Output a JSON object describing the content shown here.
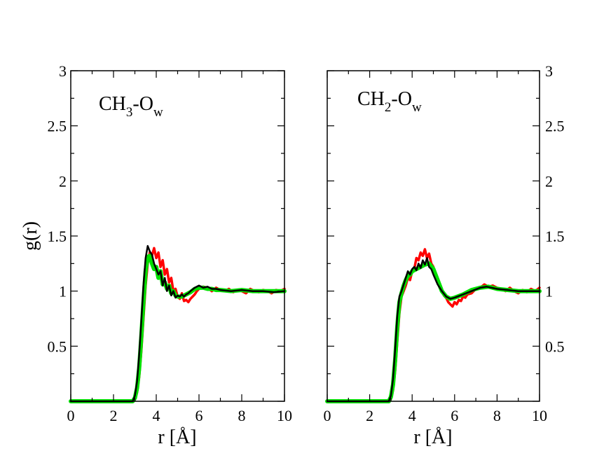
{
  "chart_data": [
    {
      "type": "line",
      "panel": "left",
      "title_main": "CH",
      "title_sub1": "3",
      "title_mid": "-O",
      "title_sub2": "w",
      "xlabel": "r [Å]",
      "ylabel": "g(r)",
      "xlim": [
        0,
        10
      ],
      "ylim": [
        0,
        3
      ],
      "xticks": [
        "0",
        "2",
        "4",
        "6",
        "8",
        "10"
      ],
      "yticks": [
        "0.5",
        "1",
        "1.5",
        "2",
        "2.5",
        "3"
      ],
      "series": [
        {
          "name": "red",
          "color": "#ff0000",
          "x": [
            0,
            2.9,
            3.0,
            3.1,
            3.2,
            3.3,
            3.4,
            3.5,
            3.6,
            3.7,
            3.8,
            3.9,
            4.0,
            4.1,
            4.2,
            4.3,
            4.4,
            4.5,
            4.6,
            4.7,
            4.8,
            4.9,
            5.0,
            5.1,
            5.2,
            5.3,
            5.4,
            5.5,
            5.6,
            5.7,
            5.8,
            5.9,
            6.0,
            6.2,
            6.4,
            6.6,
            6.8,
            7.0,
            7.2,
            7.4,
            7.6,
            7.8,
            8.0,
            8.2,
            8.4,
            8.6,
            8.8,
            9.0,
            9.2,
            9.4,
            9.6,
            9.8,
            10.0
          ],
          "y": [
            0,
            0,
            0.02,
            0.08,
            0.22,
            0.45,
            0.75,
            1.05,
            1.25,
            1.35,
            1.32,
            1.39,
            1.3,
            1.35,
            1.22,
            1.28,
            1.15,
            1.2,
            1.08,
            1.12,
            1.0,
            1.02,
            0.95,
            0.93,
            0.98,
            0.91,
            0.92,
            0.9,
            0.93,
            0.95,
            0.97,
            1.0,
            1.02,
            1.04,
            1.03,
            1.0,
            1.03,
            1.01,
            1.0,
            1.02,
            0.99,
            1.01,
            1.0,
            0.98,
            1.02,
            1.0,
            0.99,
            1.01,
            1.0,
            0.98,
            1.01,
            1.0,
            1.02
          ]
        },
        {
          "name": "green",
          "color": "#00e000",
          "x": [
            0,
            2.9,
            3.0,
            3.1,
            3.2,
            3.3,
            3.4,
            3.5,
            3.6,
            3.7,
            3.8,
            3.9,
            4.0,
            4.1,
            4.2,
            4.3,
            4.4,
            4.5,
            4.6,
            4.7,
            4.8,
            4.9,
            5.0,
            5.2,
            5.4,
            5.6,
            5.8,
            6.0,
            6.2,
            6.4,
            6.6,
            6.8,
            7.0,
            7.5,
            8.0,
            8.5,
            9.0,
            9.5,
            10.0
          ],
          "y": [
            0,
            0,
            0.03,
            0.12,
            0.3,
            0.58,
            0.9,
            1.18,
            1.31,
            1.32,
            1.25,
            1.2,
            1.22,
            1.12,
            1.18,
            1.06,
            1.08,
            1.02,
            1.05,
            0.98,
            1.0,
            0.96,
            0.95,
            0.95,
            0.97,
            0.99,
            1.02,
            1.03,
            1.03,
            1.02,
            1.02,
            1.01,
            1.01,
            1.0,
            1.01,
            1.0,
            1.0,
            1.0,
            1.0
          ]
        },
        {
          "name": "black",
          "color": "#000000",
          "x": [
            0,
            2.9,
            3.0,
            3.1,
            3.2,
            3.3,
            3.4,
            3.5,
            3.6,
            3.7,
            3.8,
            3.9,
            4.0,
            4.1,
            4.2,
            4.3,
            4.4,
            4.5,
            4.6,
            4.7,
            4.8,
            4.9,
            5.0,
            5.1,
            5.2,
            5.3,
            5.4,
            5.5,
            5.6,
            5.8,
            6.0,
            6.2,
            6.4,
            6.6,
            6.8,
            7.0,
            7.5,
            8.0,
            8.5,
            9.0,
            9.5,
            10.0
          ],
          "y": [
            0,
            0,
            0.05,
            0.18,
            0.42,
            0.72,
            1.05,
            1.3,
            1.41,
            1.36,
            1.33,
            1.25,
            1.2,
            1.15,
            1.18,
            1.05,
            1.12,
            1.0,
            1.05,
            0.96,
            1.0,
            0.94,
            0.96,
            0.95,
            0.97,
            0.95,
            0.97,
            0.98,
            1.0,
            1.03,
            1.05,
            1.03,
            1.04,
            1.02,
            1.02,
            1.01,
            1.0,
            1.01,
            1.0,
            1.0,
            0.99,
            1.0
          ]
        }
      ]
    },
    {
      "type": "line",
      "panel": "right",
      "title_main": "CH",
      "title_sub1": "2",
      "title_mid": "-O",
      "title_sub2": "w",
      "xlabel": "r [Å]",
      "ylabel": "",
      "xlim": [
        0,
        10
      ],
      "ylim": [
        0,
        3
      ],
      "xticks": [
        "0",
        "2",
        "4",
        "6",
        "8",
        "10"
      ],
      "yticks": [
        "0.5",
        "1",
        "1.5",
        "2",
        "2.5",
        "3"
      ],
      "series": [
        {
          "name": "red",
          "color": "#ff0000",
          "x": [
            0,
            2.9,
            3.0,
            3.1,
            3.2,
            3.3,
            3.4,
            3.5,
            3.6,
            3.7,
            3.8,
            3.9,
            4.0,
            4.1,
            4.2,
            4.3,
            4.4,
            4.5,
            4.6,
            4.7,
            4.8,
            4.9,
            5.0,
            5.1,
            5.2,
            5.3,
            5.4,
            5.5,
            5.6,
            5.7,
            5.8,
            5.9,
            6.0,
            6.1,
            6.2,
            6.3,
            6.4,
            6.5,
            6.6,
            6.8,
            7.0,
            7.2,
            7.4,
            7.6,
            7.8,
            8.0,
            8.2,
            8.4,
            8.6,
            8.8,
            9.0,
            9.2,
            9.4,
            9.6,
            9.8,
            10.0
          ],
          "y": [
            0,
            0,
            0.02,
            0.1,
            0.28,
            0.55,
            0.8,
            0.95,
            1.0,
            1.05,
            1.12,
            1.1,
            1.18,
            1.2,
            1.3,
            1.28,
            1.35,
            1.32,
            1.38,
            1.3,
            1.34,
            1.25,
            1.22,
            1.15,
            1.1,
            1.05,
            1.0,
            0.96,
            0.94,
            0.9,
            0.88,
            0.86,
            0.9,
            0.88,
            0.92,
            0.91,
            0.95,
            0.94,
            0.97,
            0.98,
            1.02,
            1.03,
            1.06,
            1.04,
            1.05,
            1.03,
            1.02,
            1.0,
            1.03,
            1.0,
            0.98,
            1.01,
            0.99,
            1.02,
            1.0,
            1.03
          ]
        },
        {
          "name": "green",
          "color": "#00e000",
          "x": [
            0,
            2.9,
            3.0,
            3.1,
            3.2,
            3.3,
            3.4,
            3.5,
            3.6,
            3.7,
            3.8,
            3.9,
            4.0,
            4.2,
            4.4,
            4.6,
            4.8,
            5.0,
            5.2,
            5.4,
            5.6,
            5.8,
            6.0,
            6.4,
            6.8,
            7.2,
            7.6,
            8.0,
            8.5,
            9.0,
            9.5,
            10.0
          ],
          "y": [
            0,
            0,
            0.04,
            0.15,
            0.38,
            0.68,
            0.9,
            0.98,
            1.05,
            1.1,
            1.14,
            1.15,
            1.18,
            1.2,
            1.22,
            1.24,
            1.25,
            1.2,
            1.1,
            1.0,
            0.95,
            0.93,
            0.94,
            0.97,
            1.01,
            1.03,
            1.04,
            1.02,
            1.01,
            1.0,
            1.0,
            1.0
          ]
        },
        {
          "name": "black",
          "color": "#000000",
          "x": [
            0,
            2.9,
            3.0,
            3.1,
            3.2,
            3.3,
            3.4,
            3.5,
            3.6,
            3.7,
            3.8,
            3.9,
            4.0,
            4.1,
            4.2,
            4.3,
            4.4,
            4.5,
            4.6,
            4.7,
            4.8,
            4.9,
            5.0,
            5.2,
            5.4,
            5.6,
            5.8,
            6.0,
            6.4,
            6.8,
            7.2,
            7.5,
            8.0,
            8.5,
            9.0,
            9.5,
            10.0
          ],
          "y": [
            0,
            0,
            0.05,
            0.2,
            0.48,
            0.78,
            0.95,
            1.0,
            1.06,
            1.12,
            1.18,
            1.15,
            1.2,
            1.22,
            1.19,
            1.25,
            1.21,
            1.28,
            1.24,
            1.3,
            1.22,
            1.2,
            1.15,
            1.06,
            1.0,
            0.95,
            0.93,
            0.94,
            0.97,
            1.0,
            1.03,
            1.04,
            1.02,
            1.01,
            1.0,
            1.0,
            1.0
          ]
        }
      ]
    }
  ]
}
